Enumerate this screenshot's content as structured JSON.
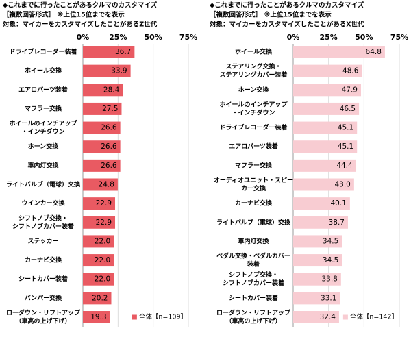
{
  "chart_data": [
    {
      "type": "bar",
      "orientation": "horizontal",
      "title": "◆これまでに行ったことがあるクルマのカスタマイズ",
      "subtitle": [
        "［複数回答形式］ ※上位15位までを表示",
        "対象：マイカーをカスタマイズしたことがあるZ世代"
      ],
      "categories": [
        [
          "ドライブレコーダー装着"
        ],
        [
          "ホイール交換"
        ],
        [
          "エアロパーツ装着"
        ],
        [
          "マフラー交換"
        ],
        [
          "ホイールのインチアップ",
          "・インチダウン"
        ],
        [
          "ホーン交換"
        ],
        [
          "車内灯交換"
        ],
        [
          "ライトバルブ（電球）交換"
        ],
        [
          "ウインカー交換"
        ],
        [
          "シフトノブ交換・",
          "シフトノブカバー装着"
        ],
        [
          "ステッカー"
        ],
        [
          "カーナビ交換"
        ],
        [
          "シートカバー装着"
        ],
        [
          "バンパー交換"
        ],
        [
          "ローダウン・リフトアップ",
          "（車高の上げ下げ）"
        ]
      ],
      "series": [
        {
          "name": "全体【n=109】",
          "color": "#e95a62",
          "label_color": "#ffffff",
          "values": [
            36.7,
            33.9,
            28.4,
            27.5,
            26.6,
            26.6,
            26.6,
            24.8,
            22.9,
            22.9,
            22.0,
            22.0,
            22.0,
            20.2,
            19.3
          ],
          "value_labels": [
            "36.7",
            "33.9",
            "28.4",
            "27.5",
            "26.6",
            "26.6",
            "26.6",
            "24.8",
            "22.9",
            "22.9",
            "22.0",
            "22.0",
            "22.0",
            "20.2",
            "19.3"
          ]
        }
      ],
      "xlim": [
        0,
        75
      ],
      "xticks": [
        {
          "value": 0,
          "label": "0%"
        },
        {
          "value": 25,
          "label": "25%"
        },
        {
          "value": 50,
          "label": "50%"
        },
        {
          "value": 75,
          "label": "75%"
        }
      ],
      "grid": true,
      "legend": "bottom-right"
    },
    {
      "type": "bar",
      "orientation": "horizontal",
      "title": "◆これまでに行ったことがあるクルマのカスタマイズ",
      "subtitle": [
        "［複数回答形式］ ※上位15位までを表示",
        "対象：マイカーをカスタマイズしたことがあるX世代"
      ],
      "categories": [
        [
          "ホイール交換"
        ],
        [
          "ステアリング交換・",
          "ステアリングカバー装着"
        ],
        [
          "ホーン交換"
        ],
        [
          "ホイールのインチアップ",
          "・インチダウン"
        ],
        [
          "ドライブレコーダー装着"
        ],
        [
          "エアロパーツ装着"
        ],
        [
          "マフラー交換"
        ],
        [
          "オーディオユニット・スピー",
          "カー交換"
        ],
        [
          "カーナビ交換"
        ],
        [
          "ライトバルブ（電球）交換"
        ],
        [
          "車内灯交換"
        ],
        [
          "ペダル交換・ペダルカバー",
          "装着"
        ],
        [
          "シフトノブ交換・",
          "シフトノブカバー装着"
        ],
        [
          "シートカバー装着"
        ],
        [
          "ローダウン・リフトアップ",
          "（車高の上げ下げ）"
        ]
      ],
      "series": [
        {
          "name": "全体【n=142】",
          "color": "#f8ccd2",
          "label_color": "#222222",
          "values": [
            64.8,
            48.6,
            47.9,
            46.5,
            45.1,
            45.1,
            44.4,
            43.0,
            40.1,
            38.7,
            34.5,
            34.5,
            33.8,
            33.1,
            32.4
          ],
          "value_labels": [
            "64.8",
            "48.6",
            "47.9",
            "46.5",
            "45.1",
            "45.1",
            "44.4",
            "43.0",
            "40.1",
            "38.7",
            "34.5",
            "34.5",
            "33.8",
            "33.1",
            "32.4"
          ]
        }
      ],
      "xlim": [
        0,
        75
      ],
      "xticks": [
        {
          "value": 0,
          "label": "0%"
        },
        {
          "value": 25,
          "label": "25%"
        },
        {
          "value": 50,
          "label": "50%"
        },
        {
          "value": 75,
          "label": "75%"
        }
      ],
      "grid": true,
      "legend": "bottom-right"
    }
  ]
}
